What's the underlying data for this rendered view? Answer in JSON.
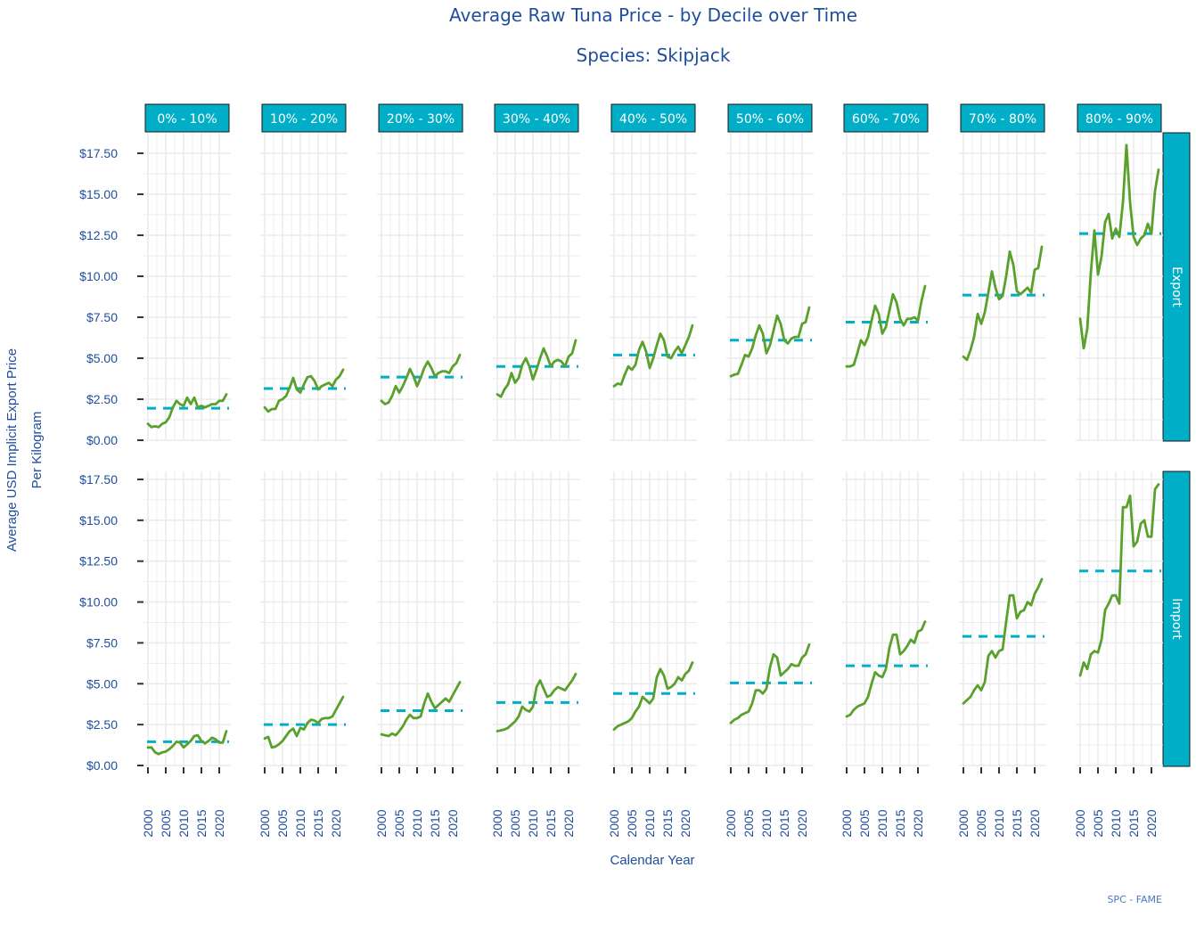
{
  "chart_data": {
    "type": "line",
    "title": "Average Raw Tuna Price - by Decile over Time",
    "subtitle": "Species: Skipjack",
    "xlabel": "Calendar Year",
    "ylabel": [
      "Average USD Implicit Export Price",
      "Per Kilogram"
    ],
    "caption": "SPC - FAME",
    "xlim": [
      2000,
      2022
    ],
    "ylim": [
      0,
      17.5
    ],
    "x_ticks": [
      2000,
      2005,
      2010,
      2015,
      2020
    ],
    "x_tick_labels": [
      "2000",
      "2005",
      "2010",
      "2015",
      "2020"
    ],
    "y_ticks": [
      0,
      2.5,
      5,
      7.5,
      10,
      12.5,
      15,
      17.5
    ],
    "y_tick_labels": [
      "$0.00",
      "$2.50",
      "$5.00",
      "$7.50",
      "$10.00",
      "$12.50",
      "$15.00",
      "$17.50"
    ],
    "grid": true,
    "facet_cols": [
      "0% - 10%",
      "10% - 20%",
      "20% - 30%",
      "30% - 40%",
      "40% - 50%",
      "50% - 60%",
      "60% - 70%",
      "70% - 80%",
      "80% - 90%"
    ],
    "facet_rows": [
      "Export",
      "Import"
    ],
    "colors": {
      "line": "#5aa02c",
      "mean": "#00aec7",
      "strip": "#00aec7",
      "grid": "#ebebeb",
      "text": "#1f4e9c"
    },
    "x": [
      2000,
      2001,
      2002,
      2003,
      2004,
      2005,
      2006,
      2007,
      2008,
      2009,
      2010,
      2011,
      2012,
      2013,
      2014,
      2015,
      2016,
      2017,
      2018,
      2019,
      2020,
      2021,
      2022
    ],
    "panels": {
      "Export": [
        {
          "decile": "0% - 10%",
          "mean": 1.95,
          "values": [
            1.0,
            0.8,
            0.85,
            0.8,
            1.0,
            1.1,
            1.4,
            2.0,
            2.4,
            2.2,
            2.1,
            2.6,
            2.2,
            2.6,
            2.0,
            2.1,
            2.0,
            2.1,
            2.2,
            2.2,
            2.4,
            2.4,
            2.8
          ]
        },
        {
          "decile": "10% - 20%",
          "mean": 3.15,
          "values": [
            2.0,
            1.75,
            1.9,
            1.9,
            2.4,
            2.5,
            2.7,
            3.2,
            3.8,
            3.1,
            2.9,
            3.4,
            3.85,
            3.9,
            3.6,
            3.1,
            3.3,
            3.4,
            3.5,
            3.3,
            3.7,
            3.9,
            4.3
          ]
        },
        {
          "decile": "20% - 30%",
          "mean": 3.85,
          "values": [
            2.4,
            2.2,
            2.3,
            2.7,
            3.3,
            2.9,
            3.3,
            3.8,
            4.35,
            3.9,
            3.3,
            3.8,
            4.4,
            4.8,
            4.4,
            3.9,
            4.1,
            4.2,
            4.2,
            4.1,
            4.5,
            4.7,
            5.2
          ]
        },
        {
          "decile": "30% - 40%",
          "mean": 4.5,
          "values": [
            2.8,
            2.65,
            3.1,
            3.4,
            4.1,
            3.5,
            3.8,
            4.6,
            5.0,
            4.5,
            3.7,
            4.3,
            5.0,
            5.6,
            5.1,
            4.5,
            4.8,
            4.9,
            4.8,
            4.5,
            5.1,
            5.3,
            6.1
          ]
        },
        {
          "decile": "40% - 50%",
          "mean": 5.2,
          "values": [
            3.3,
            3.45,
            3.4,
            4.0,
            4.5,
            4.3,
            4.6,
            5.5,
            6.0,
            5.4,
            4.4,
            5.0,
            5.8,
            6.5,
            6.1,
            5.1,
            5.0,
            5.4,
            5.7,
            5.3,
            5.8,
            6.3,
            7.0
          ]
        },
        {
          "decile": "50% - 60%",
          "mean": 6.1,
          "values": [
            3.9,
            4.0,
            4.05,
            4.6,
            5.2,
            5.1,
            5.6,
            6.4,
            7.0,
            6.5,
            5.3,
            5.8,
            6.7,
            7.6,
            7.1,
            6.1,
            5.9,
            6.2,
            6.3,
            6.3,
            7.1,
            7.2,
            8.1
          ]
        },
        {
          "decile": "60% - 70%",
          "mean": 7.2,
          "values": [
            4.5,
            4.5,
            4.6,
            5.3,
            6.1,
            5.8,
            6.3,
            7.3,
            8.2,
            7.7,
            6.5,
            6.9,
            7.9,
            8.9,
            8.4,
            7.4,
            7.0,
            7.4,
            7.4,
            7.5,
            7.3,
            8.5,
            9.4
          ]
        },
        {
          "decile": "70% - 80%",
          "mean": 8.85,
          "values": [
            5.1,
            4.9,
            5.5,
            6.3,
            7.7,
            7.1,
            7.8,
            9.0,
            10.3,
            9.3,
            8.6,
            8.8,
            10.0,
            11.5,
            10.7,
            9.1,
            8.9,
            9.1,
            9.3,
            9.0,
            10.4,
            10.5,
            11.8
          ]
        },
        {
          "decile": "80% - 90%",
          "mean": 12.6,
          "values": [
            7.4,
            5.6,
            6.8,
            10.2,
            12.8,
            10.1,
            11.2,
            13.3,
            13.8,
            12.3,
            12.9,
            12.4,
            14.5,
            18.0,
            14.5,
            12.4,
            11.9,
            12.3,
            12.5,
            13.2,
            12.6,
            15.2,
            16.5
          ]
        }
      ],
      "Import": [
        {
          "decile": "0% - 10%",
          "mean": 1.45,
          "values": [
            1.1,
            1.1,
            0.8,
            0.7,
            0.8,
            0.85,
            1.0,
            1.2,
            1.45,
            1.4,
            1.1,
            1.3,
            1.5,
            1.8,
            1.85,
            1.5,
            1.35,
            1.5,
            1.7,
            1.6,
            1.4,
            1.4,
            2.1
          ]
        },
        {
          "decile": "10% - 20%",
          "mean": 2.5,
          "values": [
            1.65,
            1.75,
            1.1,
            1.15,
            1.3,
            1.5,
            1.8,
            2.1,
            2.25,
            1.8,
            2.3,
            2.2,
            2.6,
            2.8,
            2.75,
            2.6,
            2.85,
            2.9,
            2.9,
            3.0,
            3.4,
            3.8,
            4.2
          ]
        },
        {
          "decile": "20% - 30%",
          "mean": 3.35,
          "values": [
            1.9,
            1.85,
            1.8,
            1.95,
            1.85,
            2.1,
            2.4,
            2.8,
            3.1,
            2.9,
            2.9,
            3.0,
            3.8,
            4.4,
            3.9,
            3.5,
            3.7,
            3.9,
            4.1,
            3.9,
            4.3,
            4.7,
            5.1
          ]
        },
        {
          "decile": "30% - 40%",
          "mean": 3.85,
          "values": [
            2.1,
            2.15,
            2.2,
            2.3,
            2.5,
            2.7,
            3.0,
            3.6,
            3.4,
            3.3,
            3.6,
            4.8,
            5.2,
            4.7,
            4.2,
            4.3,
            4.6,
            4.8,
            4.7,
            4.6,
            4.9,
            5.2,
            5.6
          ]
        },
        {
          "decile": "40% - 50%",
          "mean": 4.4,
          "values": [
            2.2,
            2.4,
            2.5,
            2.6,
            2.7,
            2.9,
            3.3,
            3.6,
            4.2,
            4.0,
            3.8,
            4.1,
            5.4,
            5.9,
            5.5,
            4.7,
            4.8,
            5.0,
            5.4,
            5.2,
            5.6,
            5.8,
            6.3
          ]
        },
        {
          "decile": "50% - 60%",
          "mean": 5.05,
          "values": [
            2.6,
            2.8,
            2.9,
            3.1,
            3.2,
            3.3,
            3.8,
            4.6,
            4.6,
            4.4,
            4.7,
            6.0,
            6.8,
            6.6,
            5.5,
            5.7,
            5.9,
            6.2,
            6.1,
            6.1,
            6.6,
            6.8,
            7.4
          ]
        },
        {
          "decile": "60% - 70%",
          "mean": 6.1,
          "values": [
            3.0,
            3.1,
            3.4,
            3.6,
            3.7,
            3.8,
            4.2,
            5.0,
            5.7,
            5.5,
            5.4,
            5.9,
            7.2,
            8.0,
            8.0,
            6.8,
            7.0,
            7.3,
            7.7,
            7.5,
            8.2,
            8.3,
            8.8
          ]
        },
        {
          "decile": "70% - 80%",
          "mean": 7.9,
          "values": [
            3.8,
            4.0,
            4.2,
            4.6,
            4.9,
            4.6,
            5.1,
            6.7,
            7.0,
            6.6,
            7.0,
            7.1,
            8.8,
            10.4,
            10.4,
            9.0,
            9.4,
            9.5,
            10.0,
            9.8,
            10.5,
            10.9,
            11.4
          ]
        },
        {
          "decile": "80% - 90%",
          "mean": 11.9,
          "values": [
            5.5,
            6.3,
            5.9,
            6.8,
            7.0,
            6.9,
            7.7,
            9.5,
            9.9,
            10.4,
            10.4,
            9.9,
            15.8,
            15.8,
            16.5,
            13.4,
            13.7,
            14.8,
            15.0,
            14.0,
            14.0,
            16.9,
            17.2
          ]
        }
      ]
    }
  }
}
